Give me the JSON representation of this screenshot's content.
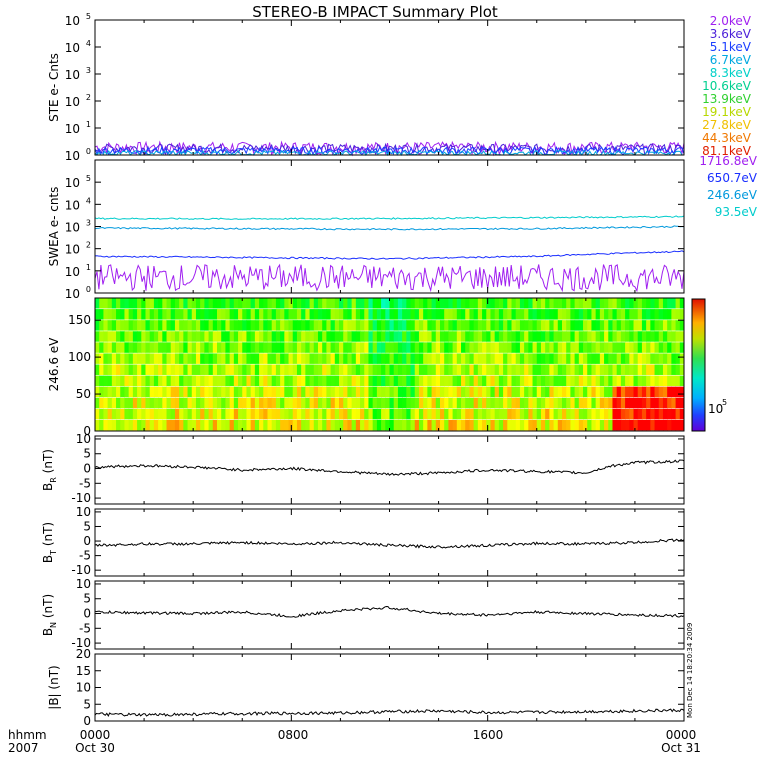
{
  "title": "STEREO-B IMPACT Summary Plot",
  "stamp": "Mon Dec 14 18:20:34 2009",
  "footer": {
    "row1_label": "hhmm",
    "row2_label": "2007",
    "ticks": [
      {
        "top": "0000",
        "bottom": "Oct 30",
        "hour": 0
      },
      {
        "top": "0800",
        "bottom": "",
        "hour": 8
      },
      {
        "top": "1600",
        "bottom": "",
        "hour": 16
      },
      {
        "top": "0000",
        "bottom": "Oct 31",
        "hour": 24
      }
    ]
  },
  "ste_legend": [
    {
      "label": "2.0keV",
      "color": "#a020f0"
    },
    {
      "label": "3.6keV",
      "color": "#4b1fd8"
    },
    {
      "label": "5.1keV",
      "color": "#1a3fff"
    },
    {
      "label": "6.7keV",
      "color": "#00a8e0"
    },
    {
      "label": "8.3keV",
      "color": "#00d0c8"
    },
    {
      "label": "10.6keV",
      "color": "#00d090"
    },
    {
      "label": "13.9keV",
      "color": "#30d030"
    },
    {
      "label": "19.1keV",
      "color": "#b8d800"
    },
    {
      "label": "27.8keV",
      "color": "#f0c000"
    },
    {
      "label": "44.3keV",
      "color": "#f07800"
    },
    {
      "label": "81.1keV",
      "color": "#e02000"
    }
  ],
  "swea_legend": [
    {
      "label": "1716.8eV",
      "color": "#a020f0"
    },
    {
      "label": "650.7eV",
      "color": "#1a2fff"
    },
    {
      "label": "246.6eV",
      "color": "#0099dd"
    },
    {
      "label": "93.5eV",
      "color": "#00cccc"
    }
  ],
  "chart_data": [
    {
      "type": "line",
      "panel": "ste",
      "ylabel": "STE e- Cnts",
      "yscale": "log",
      "ylim": [
        1,
        100000
      ],
      "yticks": [
        {
          "base": "10",
          "exp": "5"
        },
        {
          "base": "10",
          "exp": "4"
        },
        {
          "base": "10",
          "exp": "3"
        },
        {
          "base": "10",
          "exp": "2"
        },
        {
          "base": "10",
          "exp": "1"
        },
        {
          "base": "10",
          "exp": "0"
        }
      ],
      "series": [
        {
          "name": "2.0keV",
          "typical": 2.0,
          "noise": 0.5
        },
        {
          "name": "3.6keV",
          "typical": 1.8,
          "noise": 0.4
        },
        {
          "name": "5.1keV",
          "typical": 1.5,
          "noise": 0.3
        },
        {
          "name": "6.7keV",
          "typical": 1.2,
          "noise": 0.2
        }
      ]
    },
    {
      "type": "line",
      "panel": "swea",
      "ylabel": "SWEA e- cnts",
      "yscale": "log",
      "ylim": [
        1,
        1000000
      ],
      "yticks": [
        {
          "base": "10",
          "exp": "5"
        },
        {
          "base": "10",
          "exp": "4"
        },
        {
          "base": "10",
          "exp": "3"
        },
        {
          "base": "10",
          "exp": "2"
        },
        {
          "base": "10",
          "exp": "1"
        },
        {
          "base": "10",
          "exp": "0"
        }
      ],
      "series": [
        {
          "name": "93.5eV",
          "x": [
            0,
            6,
            12,
            18,
            24
          ],
          "y": [
            2300,
            2200,
            2300,
            2500,
            2800
          ]
        },
        {
          "name": "246.6eV",
          "x": [
            0,
            6,
            12,
            18,
            24
          ],
          "y": [
            850,
            800,
            750,
            800,
            1000
          ]
        },
        {
          "name": "650.7eV",
          "x": [
            0,
            6,
            12,
            18,
            24
          ],
          "y": [
            45,
            40,
            35,
            45,
            75
          ]
        },
        {
          "name": "1716.8eV",
          "x": [
            0,
            24
          ],
          "y": [
            5,
            5
          ],
          "noisy": true
        }
      ]
    },
    {
      "type": "heatmap",
      "panel": "pad",
      "ylabel": "246.6 eV",
      "ylim": [
        0,
        180
      ],
      "yticks": [
        0,
        50,
        100,
        150
      ],
      "colorbar_label": {
        "base": "10",
        "exp": "5"
      }
    },
    {
      "type": "line",
      "panel": "br",
      "ylabel": "B",
      "ylabel_sub": "R",
      "unit": "(nT)",
      "ylim": [
        -12,
        11
      ],
      "yticks": [
        10,
        5,
        0,
        -5,
        -10
      ],
      "x": [
        0,
        2,
        4,
        6,
        8,
        10,
        12,
        14,
        16,
        18,
        20,
        21,
        22,
        24
      ],
      "y": [
        0.5,
        1,
        0.5,
        -0.5,
        0,
        -1,
        -2,
        -1.5,
        -0.5,
        -1,
        -1.5,
        0.8,
        2,
        2.5
      ]
    },
    {
      "type": "line",
      "panel": "bt",
      "ylabel": "B",
      "ylabel_sub": "T",
      "unit": "(nT)",
      "ylim": [
        -12,
        11
      ],
      "yticks": [
        10,
        5,
        0,
        -5,
        -10
      ],
      "x": [
        0,
        2,
        4,
        6,
        8,
        10,
        12,
        14,
        16,
        18,
        20,
        22,
        24
      ],
      "y": [
        -1.5,
        -1,
        -1,
        -0.5,
        -1,
        -0.5,
        -1.5,
        -2,
        -1.5,
        -0.8,
        -1,
        -0.5,
        0.5
      ]
    },
    {
      "type": "line",
      "panel": "bn",
      "ylabel": "B",
      "ylabel_sub": "N",
      "unit": "(nT)",
      "ylim": [
        -12,
        11
      ],
      "yticks": [
        10,
        5,
        0,
        -5,
        -10
      ],
      "x": [
        0,
        2,
        4,
        6,
        8,
        10,
        12,
        14,
        16,
        18,
        20,
        22,
        24
      ],
      "y": [
        0.5,
        0.2,
        0,
        0.5,
        -1,
        1,
        2,
        0,
        -0.5,
        0.5,
        0,
        -0.5,
        -0.8
      ]
    },
    {
      "type": "line",
      "panel": "bmag",
      "ylabel": "|B| (nT)",
      "ylim": [
        0,
        20
      ],
      "yticks": [
        20,
        15,
        10,
        5,
        0
      ],
      "x": [
        0,
        2,
        4,
        6,
        8,
        10,
        12,
        14,
        16,
        18,
        20,
        22,
        24
      ],
      "y": [
        2,
        1.8,
        2,
        2.2,
        2.3,
        2.4,
        2.8,
        3,
        2.5,
        2.6,
        2.8,
        3,
        3.2
      ]
    }
  ]
}
